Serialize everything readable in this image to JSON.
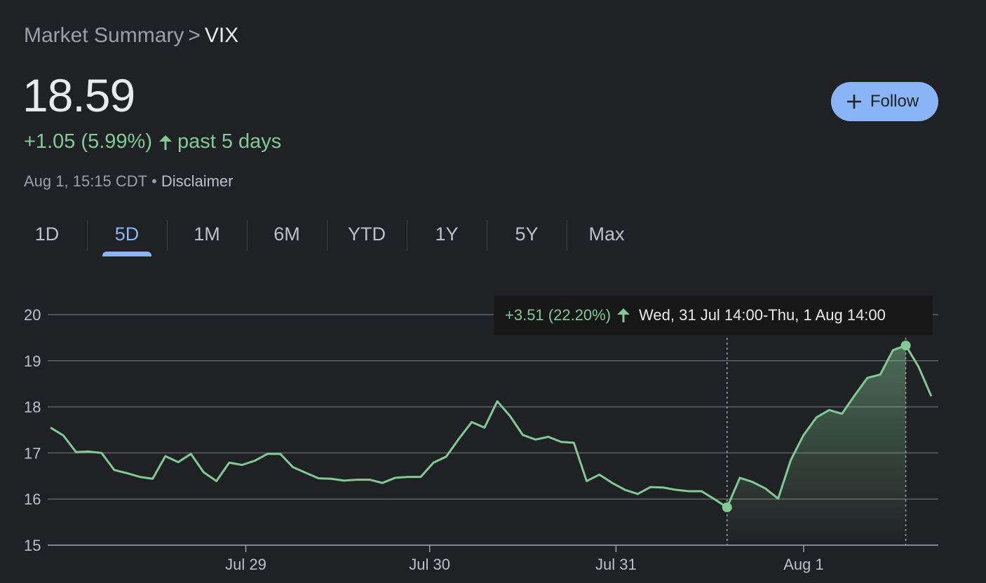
{
  "breadcrumb": {
    "parent": "Market Summary",
    "separator": ">",
    "current": "VIX"
  },
  "quote": {
    "price": "18.59",
    "change": "+1.05 (5.99%)",
    "period": "past 5 days",
    "timestamp": "Aug 1, 15:15 CDT",
    "separator": "•",
    "disclaimer": "Disclaimer"
  },
  "follow": {
    "icon": "plus-icon",
    "label": "Follow",
    "color": "#8ab4f8"
  },
  "tabs": [
    {
      "label": "1D",
      "active": false
    },
    {
      "label": "5D",
      "active": true
    },
    {
      "label": "1M",
      "active": false
    },
    {
      "label": "6M",
      "active": false
    },
    {
      "label": "YTD",
      "active": false
    },
    {
      "label": "1Y",
      "active": false
    },
    {
      "label": "5Y",
      "active": false
    },
    {
      "label": "Max",
      "active": false
    }
  ],
  "tooltip": {
    "change": "+3.51 (22.20%)",
    "range": "Wed, 31 Jul 14:00-Thu, 1 Aug 14:00"
  },
  "colors": {
    "line": "#81c995",
    "accent": "#8ab4f8",
    "grid": "#5f6368"
  },
  "chart_data": {
    "type": "line",
    "ylim": [
      15,
      20
    ],
    "yticks": [
      15,
      16,
      17,
      18,
      19,
      20
    ],
    "xticks": [
      "Jul 29",
      "Jul 30",
      "Jul 31",
      "Aug 1"
    ],
    "grid": true,
    "series": [
      {
        "values": [
          17.55,
          17.38,
          17.02,
          17.03,
          17.0,
          16.63,
          16.56,
          16.48,
          16.44,
          16.93,
          16.8,
          16.98,
          16.58,
          16.39,
          16.79,
          16.74,
          16.83,
          16.98,
          16.98,
          16.69,
          16.57,
          16.45,
          16.44,
          16.4,
          16.42,
          16.42,
          16.35,
          16.46,
          16.48,
          16.48,
          16.79,
          16.92,
          17.31,
          17.67,
          17.55,
          18.12,
          17.8,
          17.39,
          17.29,
          17.35,
          17.24,
          17.22,
          16.39,
          16.53,
          16.35,
          16.2,
          16.11,
          16.26,
          16.25,
          16.2,
          16.17,
          16.17,
          16.0,
          15.82,
          16.46,
          16.37,
          16.23,
          16.01,
          16.85,
          17.39,
          17.77,
          17.93,
          17.85,
          18.25,
          18.63,
          18.7,
          19.23,
          19.33,
          18.87,
          18.23
        ]
      }
    ],
    "highlight": {
      "start_value": 15.82,
      "end_value": 19.33
    }
  }
}
